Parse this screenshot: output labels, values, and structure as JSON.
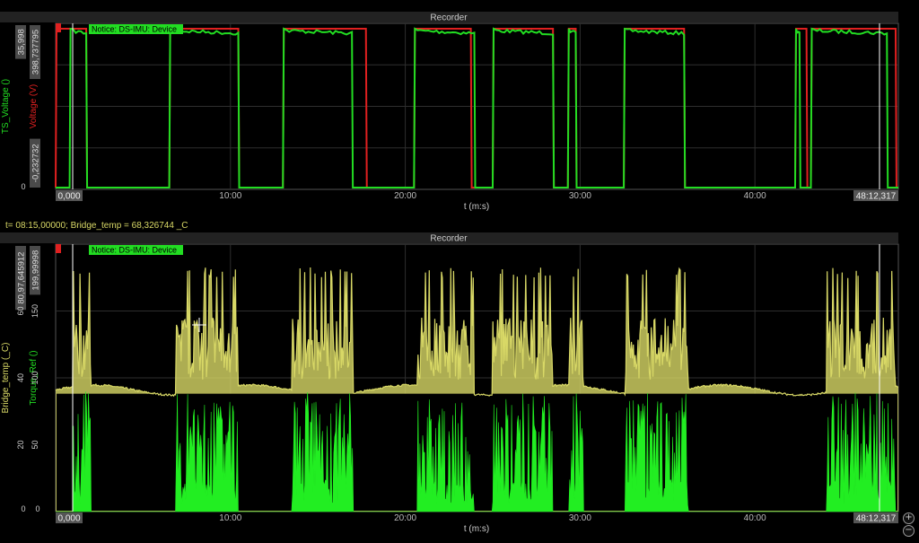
{
  "readout": "t= 08:15,00000; Bridge_temp = 68,326744 _C",
  "charts": [
    {
      "title": "Recorder",
      "notice": "Notice: DS-IMU: Device",
      "time_label": "t (m:s)",
      "time_start": "0,000",
      "time_end": "48:12,317",
      "x_ticks": [
        "10:00",
        "20:00",
        "30:00",
        "40:00"
      ],
      "axes": [
        {
          "name": "TS_Voltage ()",
          "color": "#22dd22",
          "top_label": "35,998",
          "bottom_label": "0",
          "ticks": []
        },
        {
          "name": "Voltage (V)",
          "color": "#e02020",
          "top_label": "398,737795",
          "bottom_label": "-0,232732",
          "ticks": []
        }
      ]
    },
    {
      "title": "Recorder",
      "notice": "Notice: DS-IMU: Device",
      "time_label": "t (m:s)",
      "time_start": "0,000",
      "time_end": "48:12,317",
      "x_ticks": [
        "10:00",
        "20:00",
        "30:00",
        "40:00"
      ],
      "axes": [
        {
          "name": "Bridge_temp (_C)",
          "color": "#d8d866",
          "top_label": "80,97,645912",
          "bottom_label": "0",
          "ticks": [
            "60",
            "40",
            "20"
          ]
        },
        {
          "name": "Torque_Ref ()",
          "color": "#22dd22",
          "top_label": "199,99998",
          "bottom_label": "0",
          "ticks": [
            "150",
            "100",
            "50"
          ]
        }
      ]
    }
  ],
  "chart_data": [
    {
      "type": "line",
      "title": "Recorder",
      "xlabel": "t (m:s)",
      "xlim_minutes": [
        0,
        48.205
      ],
      "series": [
        {
          "name": "TS_Voltage ()",
          "color": "#22dd22",
          "segments": [
            [
              0.8,
              1.8
            ],
            [
              6.5,
              10.5
            ],
            [
              13,
              17
            ],
            [
              20.5,
              24
            ],
            [
              25,
              28.5
            ],
            [
              29.3,
              29.8
            ],
            [
              32.5,
              36
            ],
            [
              42.3,
              42.6
            ],
            [
              43.2,
              47.6
            ]
          ],
          "on_value": 35.998,
          "off_value": 0
        },
        {
          "name": "Voltage (V)",
          "color": "#e02020",
          "segments": [
            [
              0,
              1.8
            ],
            [
              6.5,
              10.5
            ],
            [
              13,
              17.8
            ],
            [
              20.5,
              23.8
            ],
            [
              25,
              28.5
            ],
            [
              29.3,
              29.8
            ],
            [
              32.5,
              36
            ],
            [
              42.3,
              43
            ],
            [
              43.2,
              48.1
            ]
          ],
          "on_value": 398.737795,
          "off_value": -0.232732
        }
      ]
    },
    {
      "type": "line",
      "title": "Recorder",
      "xlabel": "t (m:s)",
      "xlim_minutes": [
        0,
        48.205
      ],
      "series": [
        {
          "name": "Bridge_temp (_C)",
          "color": "#d8d866",
          "ylim": [
            0,
            80.97
          ],
          "baseline": 36.5,
          "active_peak": 63
        },
        {
          "name": "Torque_Ref ()",
          "color": "#22dd22",
          "ylim": [
            0,
            199.99998
          ],
          "baseline": 0,
          "active_level": 85
        }
      ],
      "active_periods": [
        [
          1,
          2
        ],
        [
          6.9,
          10.4
        ],
        [
          13.5,
          17
        ],
        [
          20.7,
          23.9
        ],
        [
          25,
          28.4
        ],
        [
          29.4,
          30.2
        ],
        [
          32.6,
          36.2
        ],
        [
          44.1,
          48
        ]
      ]
    }
  ]
}
